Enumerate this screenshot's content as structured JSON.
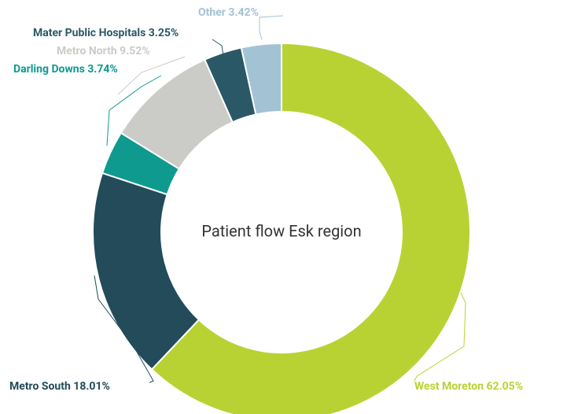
{
  "chart_data": {
    "type": "donut",
    "title": "Patient flow Esk region",
    "categories": [
      "West Moreton",
      "Metro South",
      "Darling Downs",
      "Metro North",
      "Mater Public Hospitals",
      "Other"
    ],
    "values": [
      62.05,
      18.01,
      3.74,
      9.52,
      3.25,
      3.42
    ],
    "value_labels": [
      "62.05%",
      "18.01%",
      "3.74%",
      "9.52%",
      "3.25%",
      "3.42%"
    ],
    "colors": [
      "#b9d233",
      "#234b5a",
      "#0e9a8e",
      "#cbcbc7",
      "#2a5866",
      "#a3c3d4"
    ]
  }
}
